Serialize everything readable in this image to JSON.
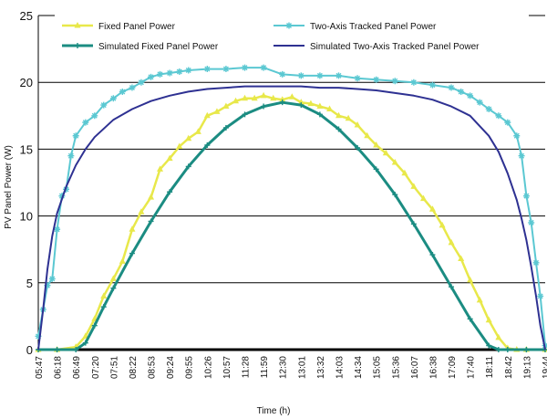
{
  "chart_data": {
    "type": "line",
    "title": "",
    "xlabel": "Time (h)",
    "ylabel": "PV Panel Power (W)",
    "ylim": [
      0,
      25
    ],
    "yticks": [
      0,
      5,
      10,
      15,
      20,
      25
    ],
    "xlim": [
      "05:47",
      "19:44"
    ],
    "grid": true,
    "legend_placement": "top",
    "xticks": [
      "05:47",
      "06:18",
      "06:49",
      "07:20",
      "07:51",
      "08:22",
      "08:53",
      "09:24",
      "09:55",
      "10:26",
      "10:57",
      "11:28",
      "11:59",
      "12:30",
      "13:01",
      "13:32",
      "14:03",
      "14:34",
      "15:05",
      "15:36",
      "16:07",
      "16:38",
      "17:09",
      "17:40",
      "18:11",
      "18:42",
      "19:13",
      "19:44"
    ],
    "series": [
      {
        "name": "Fixed Panel Power",
        "color": "#e8e84a",
        "marker": "triangle",
        "x": [
          "05:47",
          "06:18",
          "06:49",
          "07:05",
          "07:20",
          "07:35",
          "07:51",
          "08:06",
          "08:22",
          "08:37",
          "08:53",
          "09:08",
          "09:24",
          "09:40",
          "09:55",
          "10:11",
          "10:26",
          "10:42",
          "10:57",
          "11:13",
          "11:28",
          "11:44",
          "11:59",
          "12:15",
          "12:30",
          "12:46",
          "13:01",
          "13:17",
          "13:32",
          "13:48",
          "14:03",
          "14:19",
          "14:34",
          "14:50",
          "15:05",
          "15:21",
          "15:36",
          "15:52",
          "16:07",
          "16:23",
          "16:38",
          "16:54",
          "17:09",
          "17:25",
          "17:40",
          "17:56",
          "18:11",
          "18:27",
          "18:42",
          "18:57",
          "19:13",
          "19:44"
        ],
        "values": [
          0,
          0,
          0.2,
          1.0,
          2.3,
          4.0,
          5.3,
          6.6,
          9.0,
          10.3,
          11.4,
          13.5,
          14.3,
          15.2,
          15.8,
          16.3,
          17.5,
          17.8,
          18.2,
          18.6,
          18.8,
          18.8,
          19.0,
          18.8,
          18.7,
          18.9,
          18.5,
          18.4,
          18.2,
          18.0,
          17.5,
          17.3,
          16.8,
          16.0,
          15.3,
          14.7,
          14.0,
          13.2,
          12.2,
          11.3,
          10.5,
          9.3,
          8.0,
          6.8,
          5.2,
          3.7,
          2.2,
          0.9,
          0.1,
          0,
          0,
          0
        ]
      },
      {
        "name": "Two-Axis Tracked Panel Power",
        "color": "#5bc8d2",
        "marker": "star",
        "x": [
          "05:47",
          "05:55",
          "06:02",
          "06:10",
          "06:18",
          "06:26",
          "06:33",
          "06:41",
          "06:49",
          "07:05",
          "07:20",
          "07:35",
          "07:51",
          "08:06",
          "08:22",
          "08:37",
          "08:53",
          "09:08",
          "09:24",
          "09:40",
          "09:55",
          "10:26",
          "10:57",
          "11:28",
          "11:59",
          "12:30",
          "13:01",
          "13:32",
          "14:03",
          "14:34",
          "15:05",
          "15:36",
          "16:07",
          "16:38",
          "17:09",
          "17:25",
          "17:40",
          "17:56",
          "18:11",
          "18:27",
          "18:42",
          "18:57",
          "19:05",
          "19:13",
          "19:21",
          "19:29",
          "19:36",
          "19:44"
        ],
        "values": [
          1.0,
          3.0,
          4.8,
          5.3,
          9.0,
          11.5,
          12.0,
          14.5,
          16.0,
          17.0,
          17.5,
          18.3,
          18.8,
          19.3,
          19.6,
          20.0,
          20.4,
          20.6,
          20.7,
          20.8,
          20.9,
          21.0,
          21.0,
          21.1,
          21.1,
          20.6,
          20.5,
          20.5,
          20.5,
          20.3,
          20.2,
          20.1,
          20.0,
          19.8,
          19.6,
          19.3,
          19.0,
          18.5,
          18.0,
          17.5,
          17.0,
          16.0,
          14.5,
          11.5,
          9.5,
          6.5,
          4.0,
          0.3
        ]
      },
      {
        "name": "Simulated Fixed Panel Power",
        "color": "#1b8c82",
        "marker": "plus",
        "x": [
          "05:47",
          "06:18",
          "06:49",
          "07:05",
          "07:20",
          "07:35",
          "07:51",
          "08:22",
          "08:53",
          "09:24",
          "09:55",
          "10:26",
          "10:57",
          "11:28",
          "11:59",
          "12:30",
          "13:01",
          "13:32",
          "14:03",
          "14:34",
          "15:05",
          "15:36",
          "16:07",
          "16:38",
          "17:09",
          "17:40",
          "18:11",
          "18:27",
          "18:42",
          "19:13",
          "19:44"
        ],
        "values": [
          0,
          0,
          0,
          0.5,
          1.8,
          3.2,
          4.6,
          7.2,
          9.6,
          11.8,
          13.7,
          15.3,
          16.6,
          17.6,
          18.2,
          18.5,
          18.3,
          17.6,
          16.5,
          15.1,
          13.5,
          11.6,
          9.4,
          7.1,
          4.7,
          2.3,
          0.3,
          0,
          0,
          0,
          0
        ]
      },
      {
        "name": "Simulated Two-Axis Tracked Panel Power",
        "color": "#2e3192",
        "marker": "none",
        "x": [
          "05:47",
          "05:55",
          "06:02",
          "06:10",
          "06:18",
          "06:33",
          "06:49",
          "07:05",
          "07:20",
          "07:51",
          "08:22",
          "08:53",
          "09:24",
          "09:55",
          "10:26",
          "10:57",
          "11:28",
          "11:59",
          "12:30",
          "13:01",
          "13:32",
          "14:03",
          "14:34",
          "15:05",
          "15:36",
          "16:07",
          "16:38",
          "17:09",
          "17:40",
          "18:11",
          "18:27",
          "18:42",
          "18:57",
          "19:05",
          "19:13",
          "19:21",
          "19:29",
          "19:36",
          "19:44"
        ],
        "values": [
          0,
          3.0,
          6.0,
          8.5,
          10.2,
          12.2,
          13.8,
          15.0,
          15.9,
          17.2,
          18.0,
          18.6,
          19.0,
          19.3,
          19.5,
          19.6,
          19.7,
          19.7,
          19.7,
          19.7,
          19.6,
          19.6,
          19.5,
          19.4,
          19.2,
          19.0,
          18.7,
          18.2,
          17.5,
          16.0,
          14.8,
          13.2,
          11.2,
          9.8,
          8.2,
          6.2,
          4.0,
          1.8,
          0
        ]
      }
    ]
  }
}
